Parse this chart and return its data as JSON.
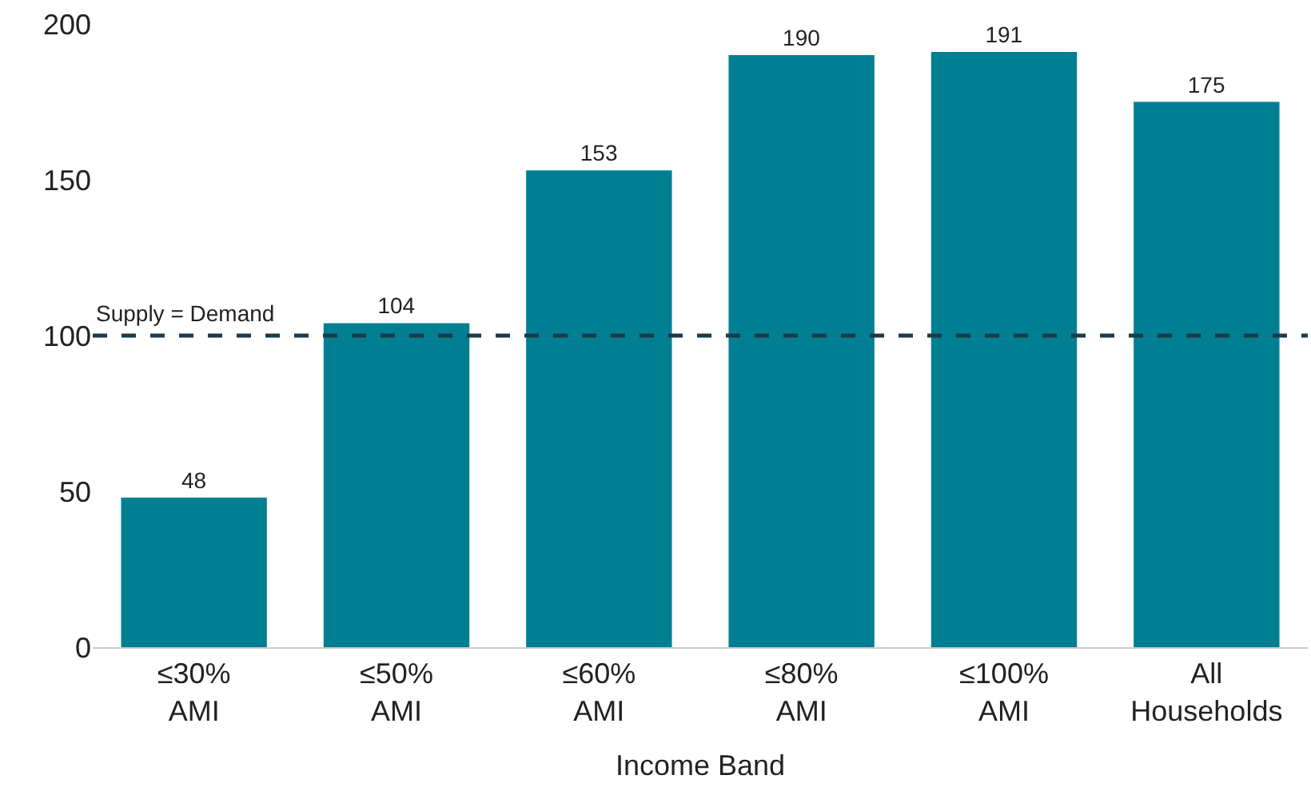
{
  "chart_data": {
    "type": "bar",
    "xlabel": "Income Band",
    "categories": [
      "≤30% AMI",
      "≤50% AMI",
      "≤60% AMI",
      "≤80% AMI",
      "≤100% AMI",
      "All Households"
    ],
    "values": [
      48,
      104,
      153,
      190,
      191,
      175
    ],
    "color": "#007f93",
    "data_labels": true,
    "ylim": [
      0,
      200
    ],
    "yticks": [
      0,
      50,
      100,
      150,
      200
    ],
    "legend": false,
    "ref_lines": [
      {
        "axis": "y",
        "value": 100,
        "label": "Supply = Demand",
        "color": "#1c3a4a",
        "line_style": "dashed"
      }
    ]
  }
}
